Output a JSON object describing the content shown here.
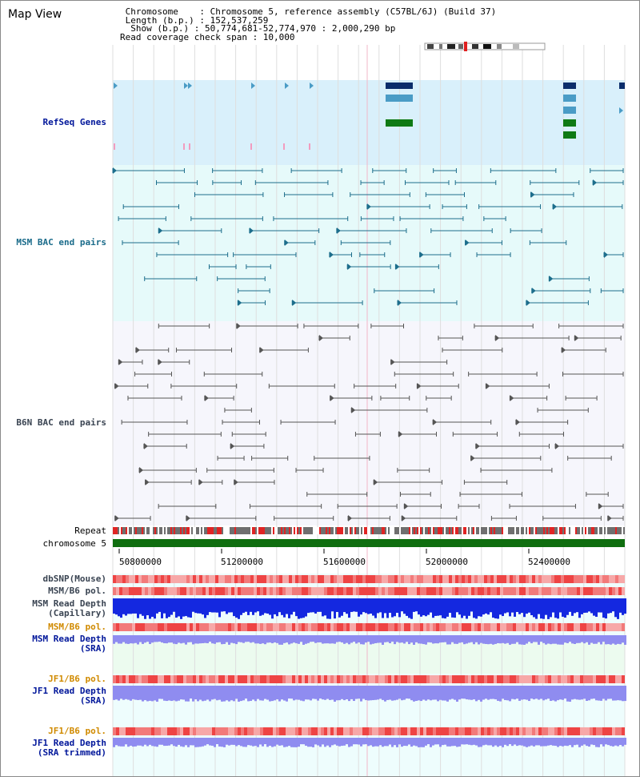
{
  "view": {
    "title": "Map View",
    "info_lines": [
      " Chromosome    : Chromosome 5, reference assembly (C57BL/6J) (Build 37)",
      " Length (b.p.) : 152,537,259",
      "  Show (b.p.) : 50,774,681-52,774,970 : 2,000,290 bp",
      "Read coverage check span : 10,000"
    ]
  },
  "tracks": {
    "refseq": "RefSeq Genes",
    "msm_bac": "MSM BAC end pairs",
    "b6n_bac": "B6N BAC end pairs",
    "repeat": "Repeat",
    "chromosome": "chromosome 5",
    "dbsnp": "dbSNP(Mouse)",
    "msm_pol_1": "MSM/B6 pol.",
    "msm_depth_cap_1": "MSM Read Depth",
    "msm_depth_cap_2": "(Capillary)",
    "msm_pol_2": "MSM/B6 pol.",
    "msm_depth_sra_1": "MSM Read Depth",
    "msm_depth_sra_2": "(SRA)",
    "jf1_pol_1": "JF1/B6 pol.",
    "jf1_depth_sra_1": "JF1 Read Depth",
    "jf1_depth_sra_2": "(SRA)",
    "jf1_pol_2": "JF1/B6 pol.",
    "jf1_depth_trim_1": "JF1 Read Depth",
    "jf1_depth_trim_2": "(SRA trimmed)"
  },
  "ruler": {
    "ticks": [
      "50800000",
      "51200000",
      "51600000",
      "52000000",
      "52400000"
    ]
  },
  "colors": {
    "refseq_bg": "#d9f0fb",
    "bac_bg": "#e6fafa",
    "b6n_bg": "#f6f6fc",
    "gene_dark": "#0b2d6b",
    "gene_light": "#4a9cc6",
    "gene_green": "#0f7a14",
    "msm_line": "#1d6e8c",
    "b6n_line": "#555555",
    "chromosome_bar": "#0f6e0f",
    "depth_capillary": "#1428e0",
    "depth_sra": "#8f8cf0"
  }
}
